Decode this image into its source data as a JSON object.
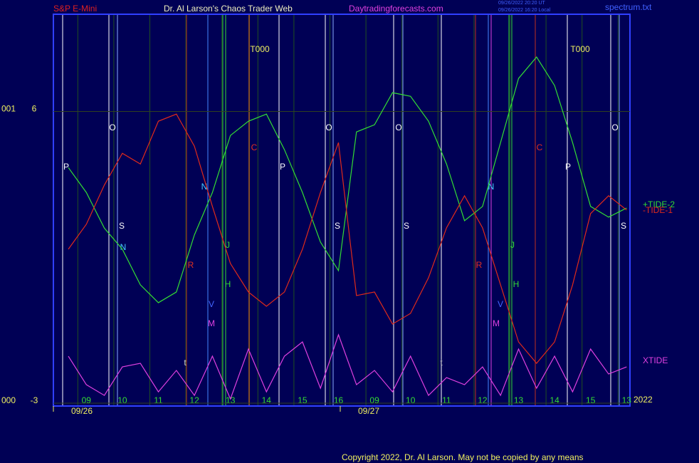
{
  "header": {
    "left": "S&P E-Mini",
    "title": "Dr. Al Larson's Chaos Trader Web",
    "site": "Daytradingforecasts.com",
    "time_ut": "09/26/2022 20:20 UT",
    "time_local": "09/26/2022 16:20 Local",
    "file": "spectrum.txt"
  },
  "footer": {
    "copyright": "Copyright 2022, Dr. Al Larson. May not be copied by any means",
    "year": "2022"
  },
  "chart_data": {
    "type": "line",
    "categories": [
      null,
      "09",
      null,
      "10",
      null,
      "11",
      null,
      "12",
      null,
      "13",
      null,
      "14",
      null,
      "15",
      null,
      "16",
      null,
      "09",
      null,
      "10",
      null,
      "11",
      null,
      "12",
      null,
      "13",
      null,
      "14",
      null,
      "15",
      null,
      "13"
    ],
    "dates": [
      "09/26",
      "09/27"
    ],
    "ylim": [
      -3,
      9
    ],
    "yticks": [
      6,
      -3
    ],
    "ytick_prefix": [
      "001",
      "000"
    ],
    "series": [
      {
        "name": "+TIDE-2",
        "color": "#33dd33",
        "values": [
          4.27,
          3.5,
          2.4,
          1.75,
          0.65,
          0.1,
          0.43,
          2.19,
          3.5,
          5.26,
          5.7,
          5.92,
          4.82,
          3.5,
          1.97,
          1.09,
          5.37,
          5.59,
          6.58,
          6.47,
          5.7,
          4.38,
          2.63,
          3.07,
          5.04,
          7.02,
          7.68,
          6.8,
          5.04,
          3.07,
          2.74,
          3.02
        ]
      },
      {
        "name": "-TIDE-1",
        "color": "#e02a1a",
        "values": [
          1.75,
          2.52,
          3.73,
          4.71,
          4.38,
          5.7,
          5.92,
          4.93,
          3.07,
          1.31,
          0.43,
          -0.01,
          0.43,
          1.75,
          3.5,
          5.04,
          0.32,
          0.43,
          -0.56,
          -0.23,
          0.87,
          2.41,
          3.4,
          2.41,
          0.65,
          -1.11,
          -1.77,
          -1.11,
          0.65,
          2.85,
          3.4,
          2.96
        ]
      },
      {
        "name": "XTIDE",
        "color": "#e040e0",
        "values": [
          -1.55,
          -2.43,
          -2.76,
          -1.88,
          -1.77,
          -2.65,
          -1.99,
          -2.76,
          -1.55,
          -2.87,
          -1.33,
          -2.65,
          -1.55,
          -1.11,
          -2.54,
          -0.89,
          -2.43,
          -1.99,
          -2.65,
          -1.55,
          -2.76,
          -2.21,
          -2.43,
          -1.88,
          -2.76,
          -1.33,
          -2.54,
          -1.55,
          -2.65,
          -1.33,
          -2.1,
          -1.88
        ]
      }
    ],
    "annotations": [
      "O",
      "O",
      "O",
      "O",
      "P",
      "P",
      "P",
      "S",
      "S",
      "S",
      "S",
      "N",
      "N",
      "V",
      "V",
      "M",
      "M",
      "R",
      "R",
      "C",
      "C",
      "H",
      "H",
      "J",
      "J",
      "N",
      "T000",
      "T000",
      "t",
      "t"
    ]
  }
}
